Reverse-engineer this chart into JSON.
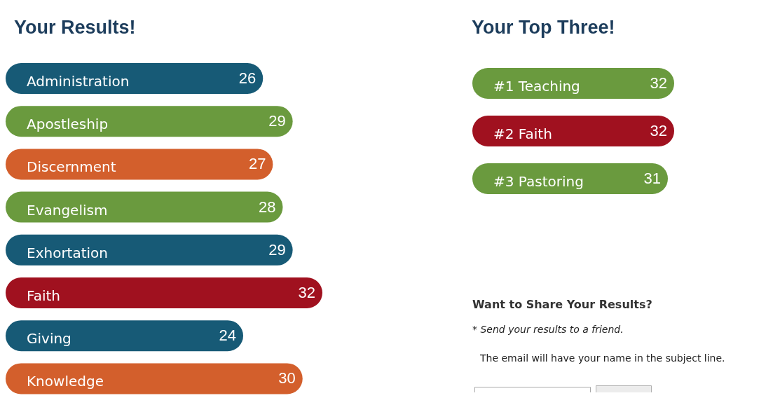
{
  "chart_data": [
    {
      "type": "bar",
      "title": "Your Results!",
      "orientation": "horizontal",
      "categories": [
        "Administration",
        "Apostleship",
        "Discernment",
        "Evangelism",
        "Exhortation",
        "Faith",
        "Giving",
        "Knowledge"
      ],
      "values": [
        26,
        29,
        27,
        28,
        29,
        32,
        24,
        30
      ],
      "colors": [
        "#175a76",
        "#6a9a3e",
        "#d35f2c",
        "#6a9a3e",
        "#175a76",
        "#a0111f",
        "#175a76",
        "#d35f2c"
      ],
      "data_labels": true
    },
    {
      "type": "bar",
      "title": "Your Top Three!",
      "orientation": "horizontal",
      "categories": [
        "#1 Teaching",
        "#2 Faith",
        "#3 Pastoring"
      ],
      "values": [
        32,
        32,
        31
      ],
      "colors": [
        "#6a9a3e",
        "#a0111f",
        "#6a9a3e"
      ],
      "data_labels": true
    },
    {
      "type": "other",
      "title": "Want to Share Your Results?",
      "annotations": [
        "* Send your results to a friend.",
        "The email will have your name in the subject line."
      ]
    }
  ]
}
